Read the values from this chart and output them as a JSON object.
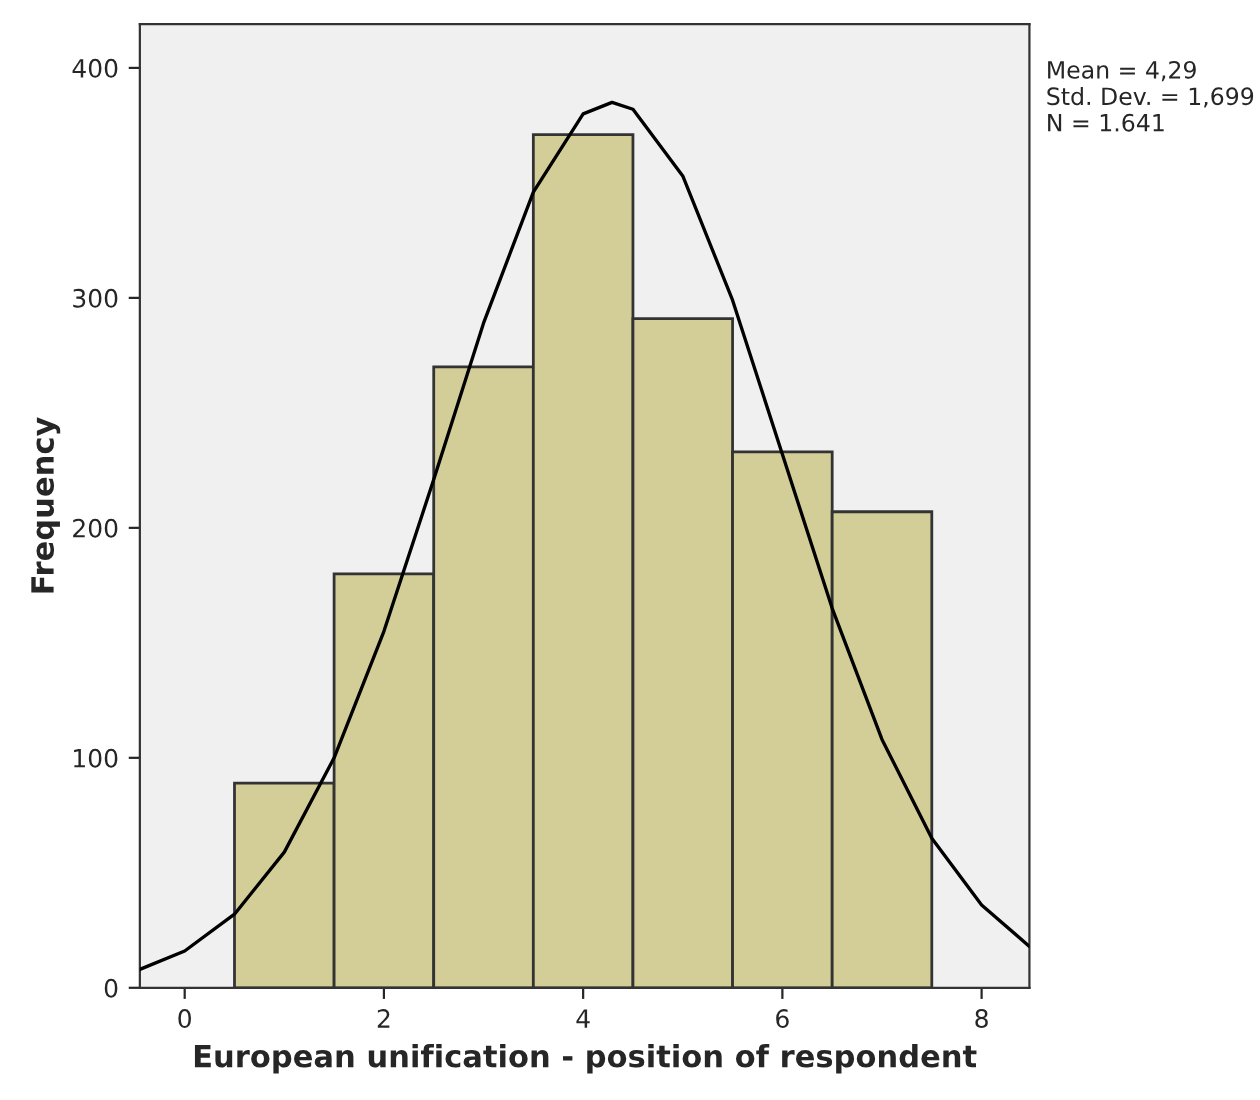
{
  "chart_data": {
    "type": "histogram",
    "xlabel": "European unification - position of respondent",
    "ylabel": "Frequency",
    "bins": [
      0.5,
      1.5,
      2.5,
      3.5,
      4.5,
      5.5,
      6.5,
      7.5
    ],
    "values": [
      89,
      180,
      270,
      371,
      291,
      233,
      207
    ],
    "color": "#d3ce97",
    "series": [
      {
        "type": "line",
        "color": "#000000",
        "x": [
          -0.45,
          0,
          0.5,
          1,
          1.5,
          2,
          2.5,
          3,
          3.5,
          4,
          4.29,
          4.5,
          5,
          5.5,
          6,
          6.5,
          7,
          7.5,
          8,
          8.48
        ],
        "values": [
          8,
          16,
          32,
          59,
          100,
          155,
          221,
          289,
          346,
          380,
          385,
          382,
          353,
          299,
          232,
          165,
          108,
          65,
          36,
          18
        ]
      }
    ],
    "xlim": [
      -0.45,
      8.48
    ],
    "ylim": [
      0,
      419
    ],
    "xticks": [
      0,
      2,
      4,
      6,
      8
    ],
    "yticks": [
      0,
      100,
      200,
      300,
      400
    ],
    "annotations": [
      "Mean = 4,29\nStd. Dev. = 1,699\nN = 1.641"
    ],
    "grid": false,
    "legend": false
  }
}
